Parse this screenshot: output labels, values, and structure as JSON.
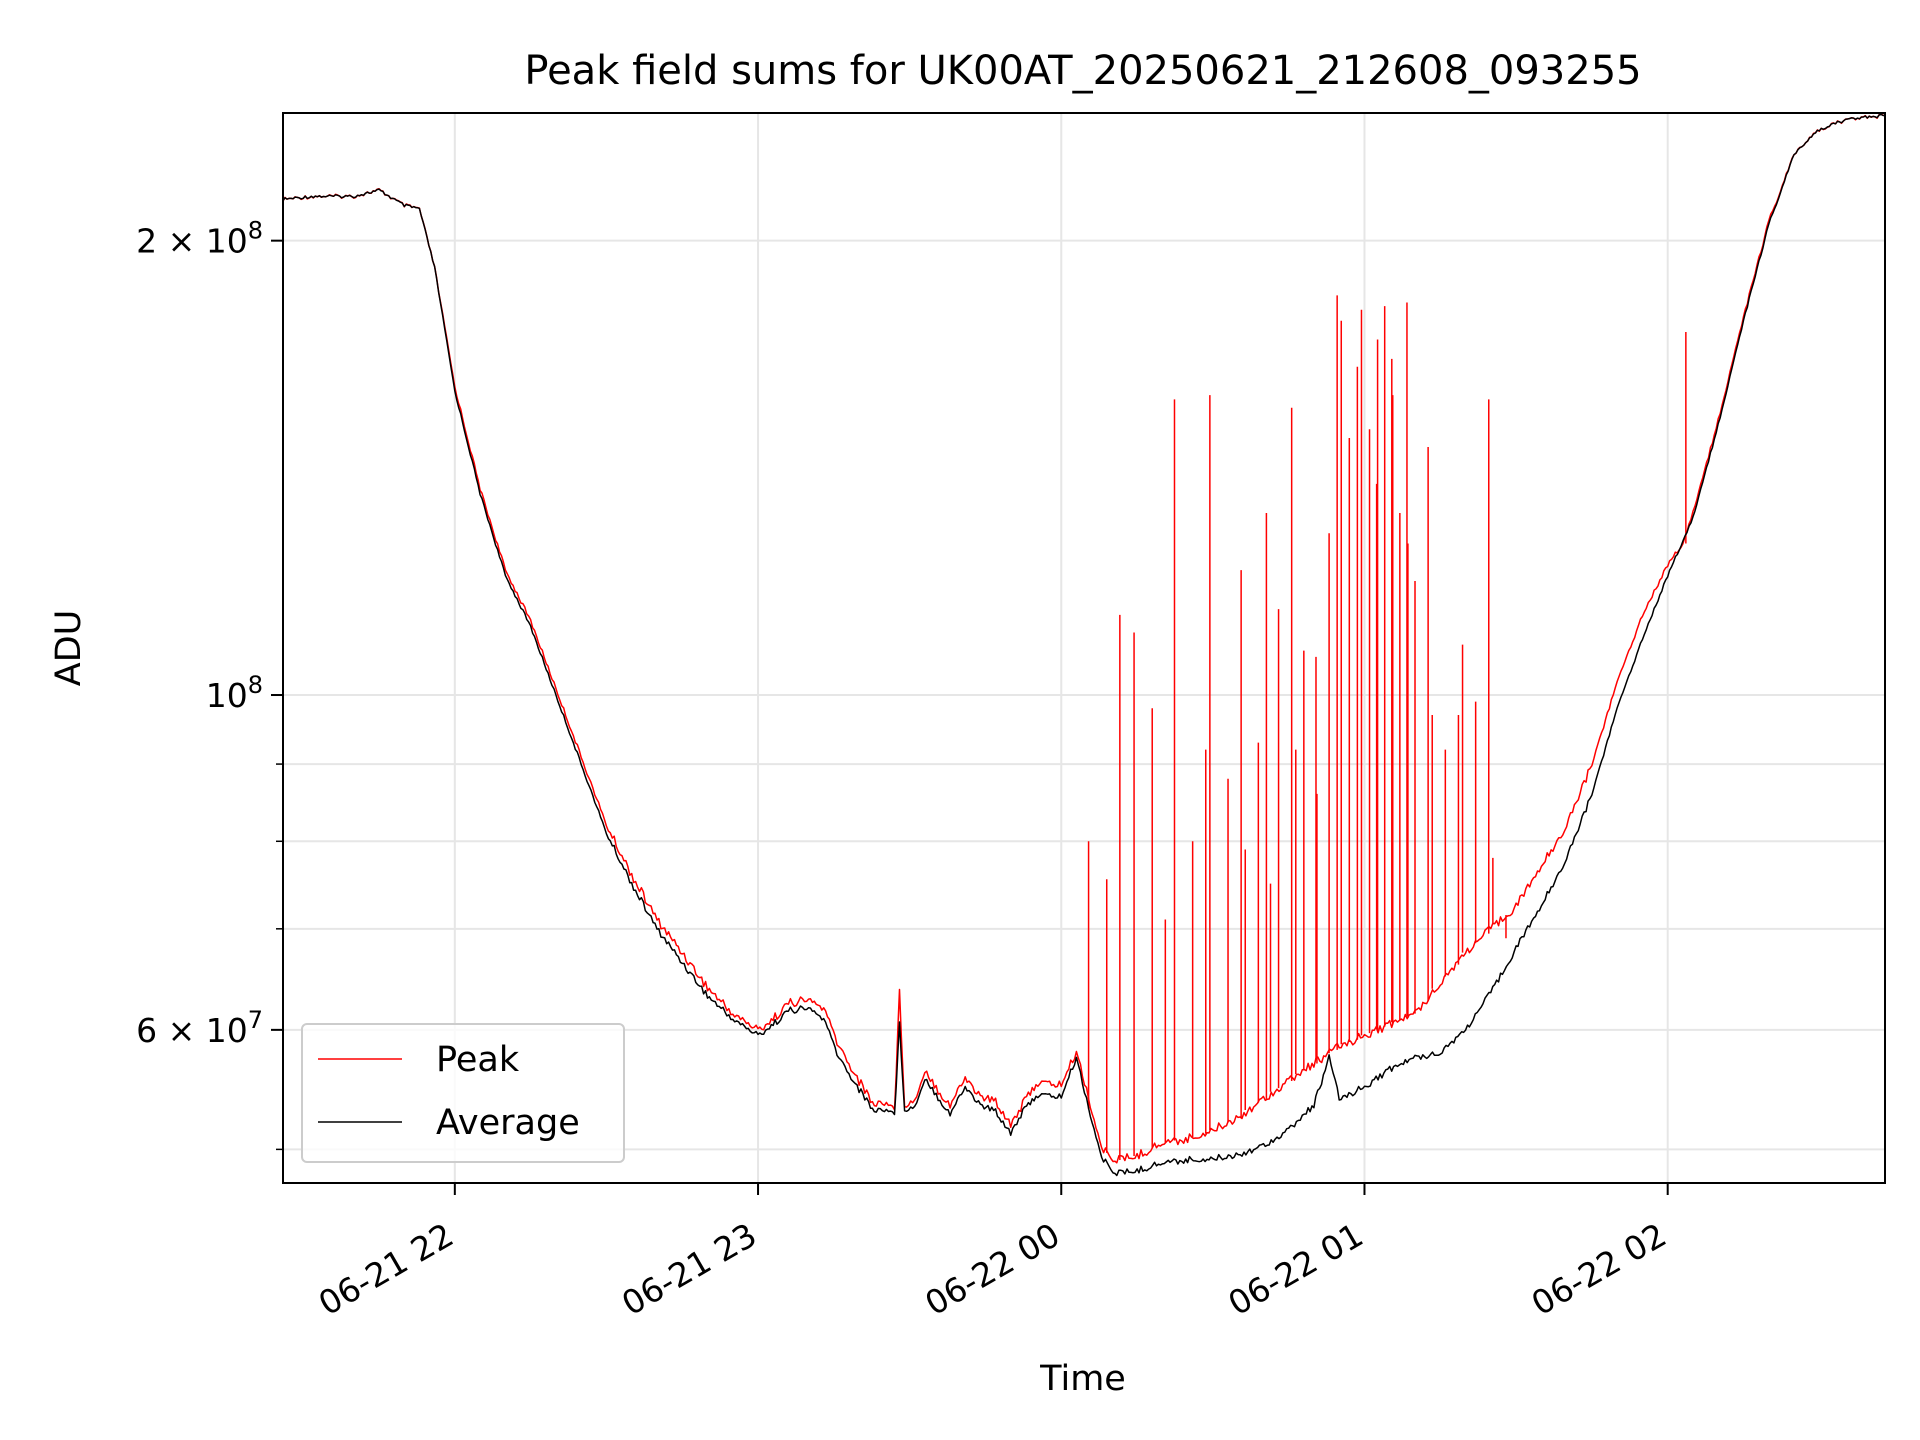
{
  "chart_data": {
    "type": "line",
    "title": "Peak field sums for UK00AT_20250621_212608_093255",
    "xlabel": "Time",
    "ylabel": "ADU",
    "x_start": "2025-06-21 21:26",
    "x_end": "2025-06-22 02:43",
    "y_scale": "log",
    "ylim": [
      47500000,
      243000000
    ],
    "grid": true,
    "legend_position": "lower-left",
    "x_ticks": [
      {
        "time": "2025-06-21 22:00",
        "label": "06-21 22"
      },
      {
        "time": "2025-06-21 23:00",
        "label": "06-21 23"
      },
      {
        "time": "2025-06-22 00:00",
        "label": "06-22 00"
      },
      {
        "time": "2025-06-22 01:00",
        "label": "06-22 01"
      },
      {
        "time": "2025-06-22 02:00",
        "label": "06-22 02"
      }
    ],
    "y_ticks": [
      {
        "value": 200000000,
        "mantissa": "2",
        "exponent": "8"
      },
      {
        "value": 100000000,
        "mantissa": "",
        "exponent": "8"
      },
      {
        "value": 60000000,
        "mantissa": "6",
        "exponent": "7"
      }
    ],
    "y_minor_ticks": [
      50000000,
      70000000,
      80000000,
      90000000
    ],
    "series": [
      {
        "name": "Peak",
        "color": "#ff0000",
        "points": [
          [
            "2025-06-21 21:26",
            213000000
          ],
          [
            "2025-06-21 21:32",
            214000000
          ],
          [
            "2025-06-21 21:40",
            214000000
          ],
          [
            "2025-06-21 21:45",
            216000000
          ],
          [
            "2025-06-21 21:50",
            211000000
          ],
          [
            "2025-06-21 21:53",
            210000000
          ],
          [
            "2025-06-21 21:56",
            192000000
          ],
          [
            "2025-06-21 22:00",
            160000000
          ],
          [
            "2025-06-21 22:05",
            137000000
          ],
          [
            "2025-06-21 22:10",
            121000000
          ],
          [
            "2025-06-21 22:15",
            112000000
          ],
          [
            "2025-06-21 22:20",
            101000000
          ],
          [
            "2025-06-21 22:25",
            91000000
          ],
          [
            "2025-06-21 22:30",
            82000000
          ],
          [
            "2025-06-21 22:35",
            76000000
          ],
          [
            "2025-06-21 22:40",
            71000000
          ],
          [
            "2025-06-21 22:45",
            67500000
          ],
          [
            "2025-06-21 22:50",
            64000000
          ],
          [
            "2025-06-21 22:55",
            61500000
          ],
          [
            "2025-06-21 23:00",
            60000000
          ],
          [
            "2025-06-21 23:03",
            61000000
          ],
          [
            "2025-06-21 23:06",
            62500000
          ],
          [
            "2025-06-21 23:10",
            62800000
          ],
          [
            "2025-06-21 23:13",
            62000000
          ],
          [
            "2025-06-21 23:16",
            58500000
          ],
          [
            "2025-06-21 23:20",
            55500000
          ],
          [
            "2025-06-21 23:23",
            53500000
          ],
          [
            "2025-06-21 23:25",
            53800000
          ],
          [
            "2025-06-21 23:27",
            53200000
          ],
          [
            "2025-06-21 23:28",
            63500000
          ],
          [
            "2025-06-21 23:29",
            53600000
          ],
          [
            "2025-06-21 23:31",
            53800000
          ],
          [
            "2025-06-21 23:33",
            56500000
          ],
          [
            "2025-06-21 23:36",
            54500000
          ],
          [
            "2025-06-21 23:38",
            53500000
          ],
          [
            "2025-06-21 23:41",
            55800000
          ],
          [
            "2025-06-21 23:44",
            54200000
          ],
          [
            "2025-06-21 23:47",
            53800000
          ],
          [
            "2025-06-21 23:50",
            52000000
          ],
          [
            "2025-06-21 23:52",
            53300000
          ],
          [
            "2025-06-21 23:55",
            55300000
          ],
          [
            "2025-06-22 00:00",
            55200000
          ],
          [
            "2025-06-22 00:03",
            58000000
          ],
          [
            "2025-06-22 00:05",
            54800000
          ],
          [
            "2025-06-22 00:08",
            50000000
          ],
          [
            "2025-06-22 00:11",
            49200000
          ],
          [
            "2025-06-22 00:15",
            49500000
          ],
          [
            "2025-06-22 00:20",
            50500000
          ],
          [
            "2025-06-22 00:25",
            50800000
          ],
          [
            "2025-06-22 00:30",
            51500000
          ],
          [
            "2025-06-22 00:35",
            52500000
          ],
          [
            "2025-06-22 00:40",
            54000000
          ],
          [
            "2025-06-22 00:45",
            55500000
          ],
          [
            "2025-06-22 00:50",
            57000000
          ],
          [
            "2025-06-22 00:55",
            58500000
          ],
          [
            "2025-06-22 01:00",
            59500000
          ],
          [
            "2025-06-22 01:05",
            60500000
          ],
          [
            "2025-06-22 01:10",
            61500000
          ],
          [
            "2025-06-22 01:15",
            64500000
          ],
          [
            "2025-06-22 01:20",
            67500000
          ],
          [
            "2025-06-22 01:25",
            70000000
          ],
          [
            "2025-06-22 01:30",
            72500000
          ],
          [
            "2025-06-22 01:35",
            77000000
          ],
          [
            "2025-06-22 01:40",
            82000000
          ],
          [
            "2025-06-22 01:45",
            90000000
          ],
          [
            "2025-06-22 01:50",
            102000000
          ],
          [
            "2025-06-22 01:55",
            113000000
          ],
          [
            "2025-06-22 02:00",
            122000000
          ],
          [
            "2025-06-22 02:03",
            126000000
          ],
          [
            "2025-06-22 02:05",
            132000000
          ],
          [
            "2025-06-22 02:10",
            152000000
          ],
          [
            "2025-06-22 02:15",
            178000000
          ],
          [
            "2025-06-22 02:20",
            206000000
          ],
          [
            "2025-06-22 02:25",
            228000000
          ],
          [
            "2025-06-22 02:30",
            237000000
          ],
          [
            "2025-06-22 02:36",
            241000000
          ],
          [
            "2025-06-22 02:43",
            242000000
          ]
        ],
        "spikes": [
          [
            "2025-06-22 00:06",
            80000000
          ],
          [
            "2025-06-22 00:09",
            75500000
          ],
          [
            "2025-06-22 00:11",
            113000000
          ],
          [
            "2025-06-22 00:15",
            110000000
          ],
          [
            "2025-06-22 00:18",
            98000000
          ],
          [
            "2025-06-22 00:20",
            71000000
          ],
          [
            "2025-06-22 00:23",
            157000000
          ],
          [
            "2025-06-22 00:26",
            80000000
          ],
          [
            "2025-06-22 00:28",
            92000000
          ],
          [
            "2025-06-22 00:30",
            158000000
          ],
          [
            "2025-06-22 00:33",
            88000000
          ],
          [
            "2025-06-22 00:35",
            121000000
          ],
          [
            "2025-06-22 00:37",
            79000000
          ],
          [
            "2025-06-22 00:39",
            93000000
          ],
          [
            "2025-06-22 00:40",
            132000000
          ],
          [
            "2025-06-22 00:42",
            75000000
          ],
          [
            "2025-06-22 00:43",
            114000000
          ],
          [
            "2025-06-22 00:45",
            155000000
          ],
          [
            "2025-06-22 00:47",
            92000000
          ],
          [
            "2025-06-22 00:48",
            107000000
          ],
          [
            "2025-06-22 00:50",
            86000000
          ],
          [
            "2025-06-22 00:51",
            106000000
          ],
          [
            "2025-06-22 00:53",
            128000000
          ],
          [
            "2025-06-22 00:54",
            184000000
          ],
          [
            "2025-06-22 00:56",
            177000000
          ],
          [
            "2025-06-22 00:57",
            148000000
          ],
          [
            "2025-06-22 00:58",
            165000000
          ],
          [
            "2025-06-22 01:00",
            180000000
          ],
          [
            "2025-06-22 01:01",
            150000000
          ],
          [
            "2025-06-22 01:02",
            172000000
          ],
          [
            "2025-06-22 01:03",
            138000000
          ],
          [
            "2025-06-22 01:04",
            181000000
          ],
          [
            "2025-06-22 01:05",
            158000000
          ],
          [
            "2025-06-22 01:06",
            167000000
          ],
          [
            "2025-06-22 01:07",
            132000000
          ],
          [
            "2025-06-22 01:08",
            126000000
          ],
          [
            "2025-06-22 01:09",
            182000000
          ],
          [
            "2025-06-22 01:10",
            119000000
          ],
          [
            "2025-06-22 01:12",
            146000000
          ],
          [
            "2025-06-22 01:14",
            97000000
          ],
          [
            "2025-06-22 01:16",
            92000000
          ],
          [
            "2025-06-22 01:18",
            97000000
          ],
          [
            "2025-06-22 01:20",
            108000000
          ],
          [
            "2025-06-22 01:22",
            99000000
          ],
          [
            "2025-06-22 01:24",
            157000000
          ],
          [
            "2025-06-22 01:26",
            78000000
          ],
          [
            "2025-06-22 01:28",
            69000000
          ],
          [
            "2025-06-22 02:03",
            174000000
          ]
        ]
      },
      {
        "name": "Average",
        "color": "#000000",
        "points": [
          [
            "2025-06-21 21:26",
            213000000
          ],
          [
            "2025-06-21 21:32",
            214000000
          ],
          [
            "2025-06-21 21:40",
            214000000
          ],
          [
            "2025-06-21 21:45",
            216000000
          ],
          [
            "2025-06-21 21:50",
            211000000
          ],
          [
            "2025-06-21 21:53",
            210000000
          ],
          [
            "2025-06-21 21:56",
            192000000
          ],
          [
            "2025-06-21 22:00",
            159000000
          ],
          [
            "2025-06-21 22:05",
            136000000
          ],
          [
            "2025-06-21 22:10",
            120000000
          ],
          [
            "2025-06-21 22:15",
            111000000
          ],
          [
            "2025-06-21 22:20",
            100000000
          ],
          [
            "2025-06-21 22:25",
            90000000
          ],
          [
            "2025-06-21 22:30",
            81000000
          ],
          [
            "2025-06-21 22:35",
            75000000
          ],
          [
            "2025-06-21 22:40",
            70000000
          ],
          [
            "2025-06-21 22:45",
            66500000
          ],
          [
            "2025-06-21 22:50",
            63200000
          ],
          [
            "2025-06-21 22:55",
            61000000
          ],
          [
            "2025-06-21 23:00",
            59500000
          ],
          [
            "2025-06-21 23:03",
            60500000
          ],
          [
            "2025-06-21 23:06",
            61800000
          ],
          [
            "2025-06-21 23:10",
            62000000
          ],
          [
            "2025-06-21 23:13",
            61000000
          ],
          [
            "2025-06-21 23:16",
            57500000
          ],
          [
            "2025-06-21 23:20",
            54800000
          ],
          [
            "2025-06-21 23:23",
            53000000
          ],
          [
            "2025-06-21 23:25",
            53200000
          ],
          [
            "2025-06-21 23:27",
            52800000
          ],
          [
            "2025-06-21 23:28",
            60500000
          ],
          [
            "2025-06-21 23:29",
            53200000
          ],
          [
            "2025-06-21 23:31",
            53300000
          ],
          [
            "2025-06-21 23:33",
            55800000
          ],
          [
            "2025-06-21 23:36",
            53900000
          ],
          [
            "2025-06-21 23:38",
            52800000
          ],
          [
            "2025-06-21 23:41",
            55000000
          ],
          [
            "2025-06-21 23:44",
            53500000
          ],
          [
            "2025-06-21 23:47",
            53000000
          ],
          [
            "2025-06-21 23:50",
            51300000
          ],
          [
            "2025-06-21 23:52",
            52700000
          ],
          [
            "2025-06-21 23:55",
            54300000
          ],
          [
            "2025-06-22 00:00",
            54200000
          ],
          [
            "2025-06-22 00:03",
            57500000
          ],
          [
            "2025-06-22 00:05",
            54000000
          ],
          [
            "2025-06-22 00:08",
            49300000
          ],
          [
            "2025-06-22 00:11",
            48200000
          ],
          [
            "2025-06-22 00:15",
            48400000
          ],
          [
            "2025-06-22 00:20",
            49000000
          ],
          [
            "2025-06-22 00:25",
            49200000
          ],
          [
            "2025-06-22 00:30",
            49300000
          ],
          [
            "2025-06-22 00:35",
            49600000
          ],
          [
            "2025-06-22 00:40",
            50300000
          ],
          [
            "2025-06-22 00:45",
            51500000
          ],
          [
            "2025-06-22 00:50",
            53500000
          ],
          [
            "2025-06-22 00:53",
            57500000
          ],
          [
            "2025-06-22 00:55",
            54000000
          ],
          [
            "2025-06-22 01:00",
            55000000
          ],
          [
            "2025-06-22 01:05",
            56500000
          ],
          [
            "2025-06-22 01:10",
            57500000
          ],
          [
            "2025-06-22 01:15",
            58000000
          ],
          [
            "2025-06-22 01:20",
            60000000
          ],
          [
            "2025-06-22 01:25",
            63500000
          ],
          [
            "2025-06-22 01:30",
            68000000
          ],
          [
            "2025-06-22 01:35",
            72500000
          ],
          [
            "2025-06-22 01:40",
            78000000
          ],
          [
            "2025-06-22 01:45",
            86000000
          ],
          [
            "2025-06-22 01:50",
            98000000
          ],
          [
            "2025-06-22 01:55",
            109000000
          ],
          [
            "2025-06-22 02:00",
            120000000
          ],
          [
            "2025-06-22 02:05",
            131000000
          ],
          [
            "2025-06-22 02:10",
            151000000
          ],
          [
            "2025-06-22 02:15",
            177000000
          ],
          [
            "2025-06-22 02:20",
            205000000
          ],
          [
            "2025-06-22 02:25",
            228000000
          ],
          [
            "2025-06-22 02:30",
            237000000
          ],
          [
            "2025-06-22 02:36",
            241000000
          ],
          [
            "2025-06-22 02:43",
            242000000
          ]
        ]
      }
    ]
  }
}
